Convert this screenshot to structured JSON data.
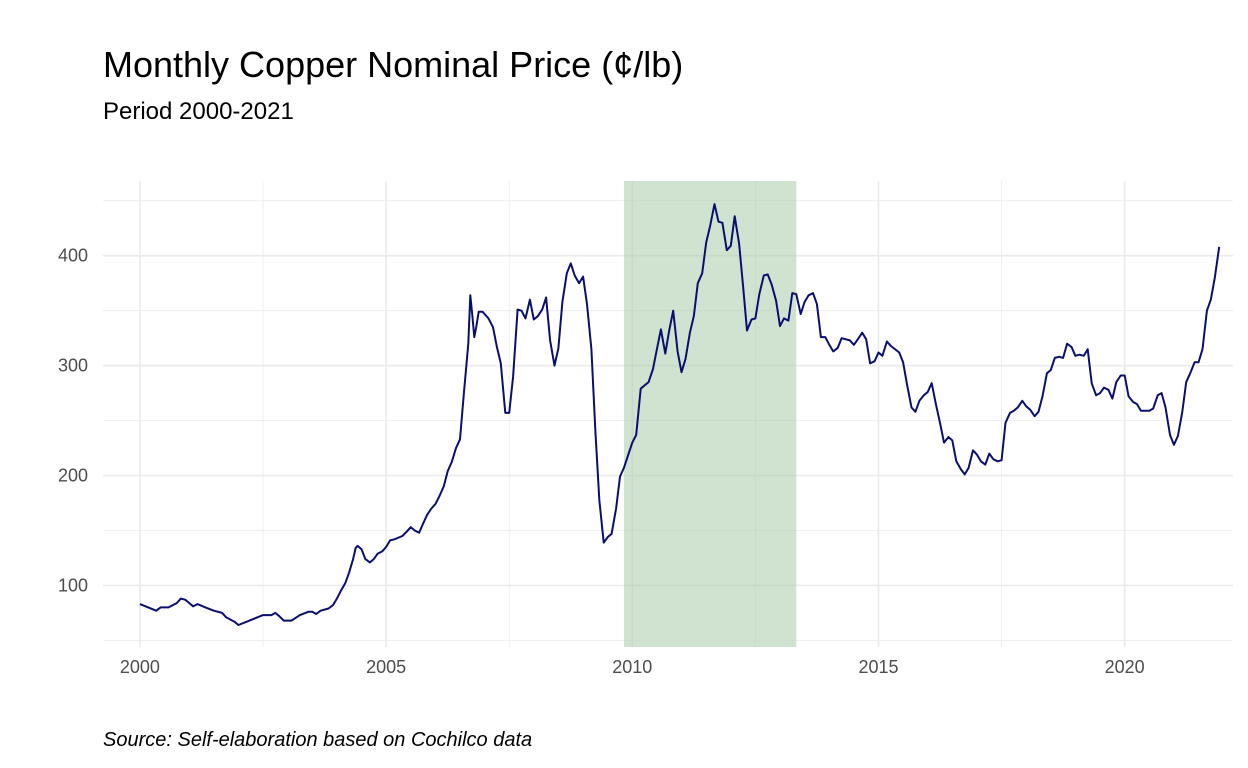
{
  "title": "Monthly Copper Nominal Price (¢/lb)",
  "subtitle": "Period 2000-2021",
  "caption": "Source: Self-elaboration based on Cochilco data",
  "colors": {
    "line": "#0a0f6e",
    "band": "#a9cba9",
    "grid": "#ebebeb"
  },
  "chart_data": {
    "type": "line",
    "title": "Monthly Copper Nominal Price (¢/lb)",
    "subtitle": "Period 2000-2021",
    "xlabel": "",
    "ylabel": "",
    "xlim": [
      1999.25,
      2022.2
    ],
    "ylim": [
      44,
      468
    ],
    "x_ticks": [
      2000,
      2005,
      2010,
      2015,
      2020
    ],
    "y_ticks": [
      100,
      200,
      300,
      400
    ],
    "grid": true,
    "legend": "none",
    "shaded_region": {
      "x_start": 2009.83,
      "x_end": 2013.33
    },
    "series": [
      {
        "points": [
          [
            2000.0,
            83
          ],
          [
            2000.17,
            80
          ],
          [
            2000.33,
            77
          ],
          [
            2000.42,
            80
          ],
          [
            2000.58,
            80
          ],
          [
            2000.75,
            84
          ],
          [
            2000.83,
            88
          ],
          [
            2000.92,
            87
          ],
          [
            2001.0,
            84
          ],
          [
            2001.08,
            81
          ],
          [
            2001.17,
            83
          ],
          [
            2001.33,
            80
          ],
          [
            2001.5,
            77
          ],
          [
            2001.67,
            75
          ],
          [
            2001.75,
            71
          ],
          [
            2001.92,
            67
          ],
          [
            2002.0,
            64
          ],
          [
            2002.17,
            67
          ],
          [
            2002.33,
            70
          ],
          [
            2002.5,
            73
          ],
          [
            2002.67,
            73
          ],
          [
            2002.75,
            75
          ],
          [
            2002.83,
            72
          ],
          [
            2002.92,
            68
          ],
          [
            2003.08,
            68
          ],
          [
            2003.25,
            73
          ],
          [
            2003.42,
            76
          ],
          [
            2003.5,
            76
          ],
          [
            2003.58,
            74
          ],
          [
            2003.67,
            77
          ],
          [
            2003.83,
            79
          ],
          [
            2003.92,
            82
          ],
          [
            2004.0,
            88
          ],
          [
            2004.08,
            95
          ],
          [
            2004.17,
            102
          ],
          [
            2004.25,
            112
          ],
          [
            2004.33,
            124
          ],
          [
            2004.38,
            134
          ],
          [
            2004.42,
            136
          ],
          [
            2004.5,
            133
          ],
          [
            2004.58,
            124
          ],
          [
            2004.67,
            121
          ],
          [
            2004.75,
            124
          ],
          [
            2004.83,
            129
          ],
          [
            2004.92,
            131
          ],
          [
            2005.0,
            135
          ],
          [
            2005.08,
            141
          ],
          [
            2005.17,
            142
          ],
          [
            2005.33,
            145
          ],
          [
            2005.42,
            149
          ],
          [
            2005.5,
            153
          ],
          [
            2005.58,
            150
          ],
          [
            2005.67,
            148
          ],
          [
            2005.75,
            156
          ],
          [
            2005.83,
            164
          ],
          [
            2005.92,
            170
          ],
          [
            2006.0,
            174
          ],
          [
            2006.08,
            181
          ],
          [
            2006.17,
            190
          ],
          [
            2006.25,
            204
          ],
          [
            2006.33,
            212
          ],
          [
            2006.42,
            225
          ],
          [
            2006.5,
            233
          ],
          [
            2006.58,
            275
          ],
          [
            2006.67,
            320
          ],
          [
            2006.71,
            364
          ],
          [
            2006.75,
            346
          ],
          [
            2006.79,
            326
          ],
          [
            2006.83,
            335
          ],
          [
            2006.88,
            349
          ],
          [
            2006.96,
            349
          ],
          [
            2007.08,
            343
          ],
          [
            2007.17,
            335
          ],
          [
            2007.25,
            317
          ],
          [
            2007.33,
            302
          ],
          [
            2007.42,
            257
          ],
          [
            2007.5,
            257
          ],
          [
            2007.58,
            290
          ],
          [
            2007.67,
            351
          ],
          [
            2007.75,
            350
          ],
          [
            2007.83,
            343
          ],
          [
            2007.92,
            360
          ],
          [
            2008.0,
            342
          ],
          [
            2008.08,
            345
          ],
          [
            2008.17,
            351
          ],
          [
            2008.25,
            362
          ],
          [
            2008.33,
            323
          ],
          [
            2008.42,
            300
          ],
          [
            2008.5,
            316
          ],
          [
            2008.58,
            358
          ],
          [
            2008.67,
            384
          ],
          [
            2008.75,
            393
          ],
          [
            2008.83,
            382
          ],
          [
            2008.92,
            375
          ],
          [
            2009.0,
            381
          ],
          [
            2009.08,
            356
          ],
          [
            2009.17,
            315
          ],
          [
            2009.25,
            240
          ],
          [
            2009.33,
            178
          ],
          [
            2009.42,
            139
          ],
          [
            2009.5,
            144
          ],
          [
            2009.58,
            147
          ],
          [
            2009.67,
            170
          ],
          [
            2009.75,
            199
          ],
          [
            2009.83,
            207
          ],
          [
            2010.0,
            230
          ],
          [
            2010.08,
            237
          ],
          [
            2010.17,
            279
          ],
          [
            2010.25,
            282
          ],
          [
            2010.33,
            285
          ],
          [
            2010.42,
            297
          ],
          [
            2010.5,
            315
          ],
          [
            2010.58,
            333
          ],
          [
            2010.67,
            311
          ],
          [
            2010.75,
            332
          ],
          [
            2010.83,
            350
          ],
          [
            2010.92,
            313
          ],
          [
            2011.0,
            294
          ],
          [
            2011.08,
            306
          ],
          [
            2011.17,
            330
          ],
          [
            2011.25,
            345
          ],
          [
            2011.33,
            375
          ],
          [
            2011.42,
            384
          ],
          [
            2011.5,
            412
          ],
          [
            2011.58,
            427
          ],
          [
            2011.67,
            447
          ],
          [
            2011.75,
            431
          ],
          [
            2011.83,
            430
          ],
          [
            2011.92,
            405
          ],
          [
            2012.0,
            409
          ],
          [
            2012.08,
            436
          ],
          [
            2012.17,
            411
          ],
          [
            2012.25,
            372
          ],
          [
            2012.33,
            332
          ],
          [
            2012.42,
            342
          ],
          [
            2012.5,
            343
          ],
          [
            2012.58,
            365
          ],
          [
            2012.67,
            382
          ],
          [
            2012.75,
            383
          ],
          [
            2012.83,
            374
          ],
          [
            2012.92,
            359
          ],
          [
            2013.0,
            336
          ],
          [
            2013.08,
            343
          ],
          [
            2013.17,
            341
          ],
          [
            2013.25,
            366
          ],
          [
            2013.33,
            365
          ],
          [
            2013.42,
            347
          ],
          [
            2013.5,
            358
          ],
          [
            2013.58,
            364
          ],
          [
            2013.67,
            366
          ],
          [
            2013.75,
            356
          ],
          [
            2013.83,
            326
          ],
          [
            2013.92,
            326
          ],
          [
            2014.0,
            319
          ],
          [
            2014.08,
            313
          ],
          [
            2014.17,
            316
          ],
          [
            2014.25,
            325
          ],
          [
            2014.42,
            323
          ],
          [
            2014.5,
            319
          ],
          [
            2014.58,
            324
          ],
          [
            2014.67,
            330
          ],
          [
            2014.75,
            324
          ],
          [
            2014.83,
            302
          ],
          [
            2014.92,
            304
          ],
          [
            2015.0,
            312
          ],
          [
            2015.08,
            309
          ],
          [
            2015.17,
            322
          ],
          [
            2015.25,
            318
          ],
          [
            2015.42,
            312
          ],
          [
            2015.5,
            303
          ],
          [
            2015.58,
            283
          ],
          [
            2015.67,
            262
          ],
          [
            2015.75,
            258
          ],
          [
            2015.83,
            268
          ],
          [
            2015.92,
            273
          ],
          [
            2016.0,
            276
          ],
          [
            2016.08,
            284
          ],
          [
            2016.17,
            264
          ],
          [
            2016.25,
            248
          ],
          [
            2016.33,
            230
          ],
          [
            2016.42,
            235
          ],
          [
            2016.5,
            232
          ],
          [
            2016.58,
            213
          ],
          [
            2016.67,
            206
          ],
          [
            2016.75,
            201
          ],
          [
            2016.83,
            207
          ],
          [
            2016.92,
            223
          ],
          [
            2017.0,
            219
          ],
          [
            2017.08,
            213
          ],
          [
            2017.17,
            210
          ],
          [
            2017.25,
            220
          ],
          [
            2017.33,
            215
          ],
          [
            2017.42,
            213
          ],
          [
            2017.5,
            214
          ],
          [
            2017.58,
            248
          ],
          [
            2017.67,
            257
          ],
          [
            2017.75,
            259
          ],
          [
            2017.83,
            262
          ],
          [
            2017.92,
            268
          ],
          [
            2018.0,
            263
          ],
          [
            2018.08,
            260
          ],
          [
            2018.17,
            254
          ],
          [
            2018.25,
            258
          ],
          [
            2018.33,
            272
          ],
          [
            2018.42,
            293
          ],
          [
            2018.5,
            296
          ],
          [
            2018.58,
            307
          ],
          [
            2018.67,
            308
          ],
          [
            2018.75,
            307
          ],
          [
            2018.83,
            320
          ],
          [
            2018.92,
            317
          ],
          [
            2019.0,
            309
          ],
          [
            2019.08,
            310
          ],
          [
            2019.17,
            309
          ],
          [
            2019.25,
            315
          ],
          [
            2019.33,
            284
          ],
          [
            2019.42,
            273
          ],
          [
            2019.5,
            275
          ],
          [
            2019.58,
            280
          ],
          [
            2019.67,
            278
          ],
          [
            2019.75,
            270
          ],
          [
            2019.83,
            285
          ],
          [
            2019.92,
            291
          ],
          [
            2020.0,
            291
          ],
          [
            2020.08,
            272
          ],
          [
            2020.17,
            267
          ],
          [
            2020.25,
            265
          ],
          [
            2020.33,
            259
          ],
          [
            2020.42,
            259
          ],
          [
            2020.5,
            259
          ],
          [
            2020.58,
            261
          ],
          [
            2020.67,
            273
          ],
          [
            2020.75,
            275
          ],
          [
            2020.83,
            262
          ],
          [
            2020.92,
            237
          ],
          [
            2021.0,
            228
          ],
          [
            2021.08,
            236
          ],
          [
            2021.17,
            258
          ],
          [
            2021.25,
            285
          ],
          [
            2021.33,
            293
          ],
          [
            2021.42,
            303
          ],
          [
            2021.5,
            303
          ],
          [
            2021.58,
            315
          ],
          [
            2021.67,
            350
          ],
          [
            2021.75,
            360
          ],
          [
            2021.83,
            380
          ],
          [
            2021.92,
            408
          ]
        ]
      }
    ]
  }
}
